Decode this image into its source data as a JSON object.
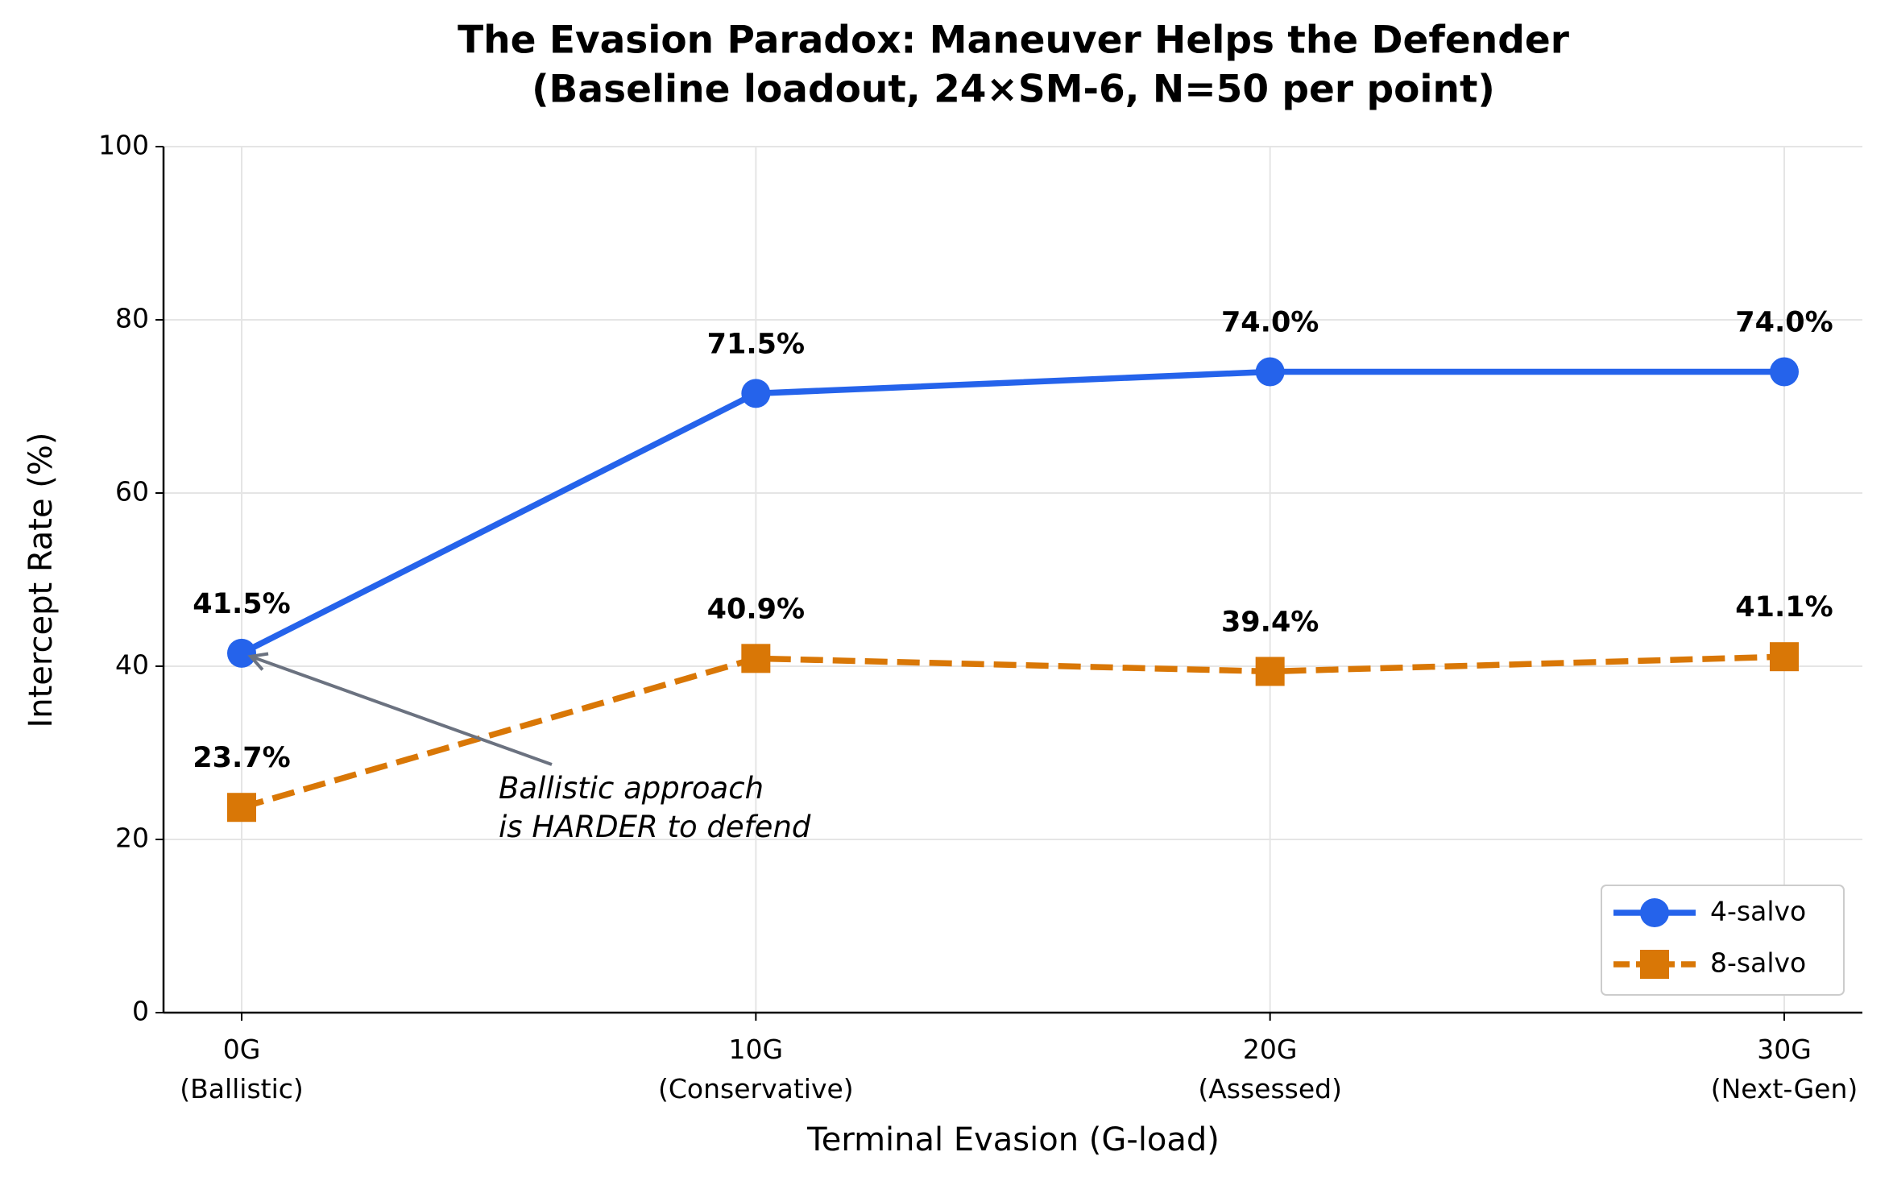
{
  "chart_data": {
    "type": "line",
    "title": "The Evasion Paradox: Maneuver Helps the Defender",
    "subtitle": "(Baseline loadout, 24×SM-6, N=50 per point)",
    "x_label": "Terminal Evasion (G-load)",
    "y_label": "Intercept Rate (%)",
    "categories": [
      "0G\n(Ballistic)",
      "10G\n(Conservative)",
      "20G\n(Assessed)",
      "30G\n(Next-Gen)"
    ],
    "series": [
      {
        "name": "4-salvo",
        "color": "#2563eb",
        "marker": "circle",
        "dashed": false,
        "values": [
          41.5,
          71.5,
          74.0,
          74.0
        ],
        "value_labels": [
          "41.5%",
          "71.5%",
          "74.0%",
          "74.0%"
        ]
      },
      {
        "name": "8-salvo",
        "color": "#d97706",
        "marker": "square",
        "dashed": true,
        "values": [
          23.7,
          40.9,
          39.4,
          41.1
        ],
        "value_labels": [
          "23.7%",
          "40.9%",
          "39.4%",
          "41.1%"
        ]
      }
    ],
    "ylim": [
      0,
      100
    ],
    "yticks": [
      0,
      20,
      40,
      60,
      80,
      100
    ],
    "grid": true,
    "legend": "lower right",
    "annotation": {
      "text": "Ballistic approach\nis HARDER to defend",
      "series": 0,
      "index": 0,
      "color": "#6b7280"
    }
  }
}
